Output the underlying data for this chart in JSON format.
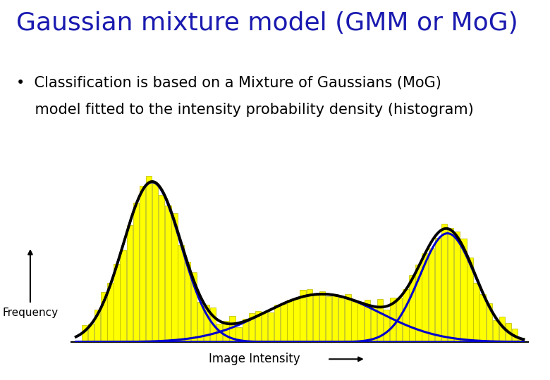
{
  "title": "Gaussian mixture model (GMM or MoG)",
  "title_color": "#1a1ab0",
  "title_fontsize": 26,
  "bullet_line1": "•  Classification is based on a Mixture of Gaussians (MoG)",
  "bullet_line2": "    model fitted to the intensity probability density (histogram)",
  "bullet_fontsize": 15,
  "ylabel": "Frequency",
  "xlabel": "Image Intensity",
  "background_color": "#ffffff",
  "bar_color": "#ffff00",
  "bar_edge_color": "#b8b800",
  "mixture_line_color": "#0000cc",
  "total_line_color": "#000000",
  "gauss1_mu": 0.17,
  "gauss1_sigma": 0.065,
  "gauss1_amp": 1.0,
  "gauss2_mu": 0.55,
  "gauss2_sigma": 0.13,
  "gauss2_amp": 0.3,
  "gauss3_mu": 0.83,
  "gauss3_sigma": 0.062,
  "gauss3_amp": 0.68
}
